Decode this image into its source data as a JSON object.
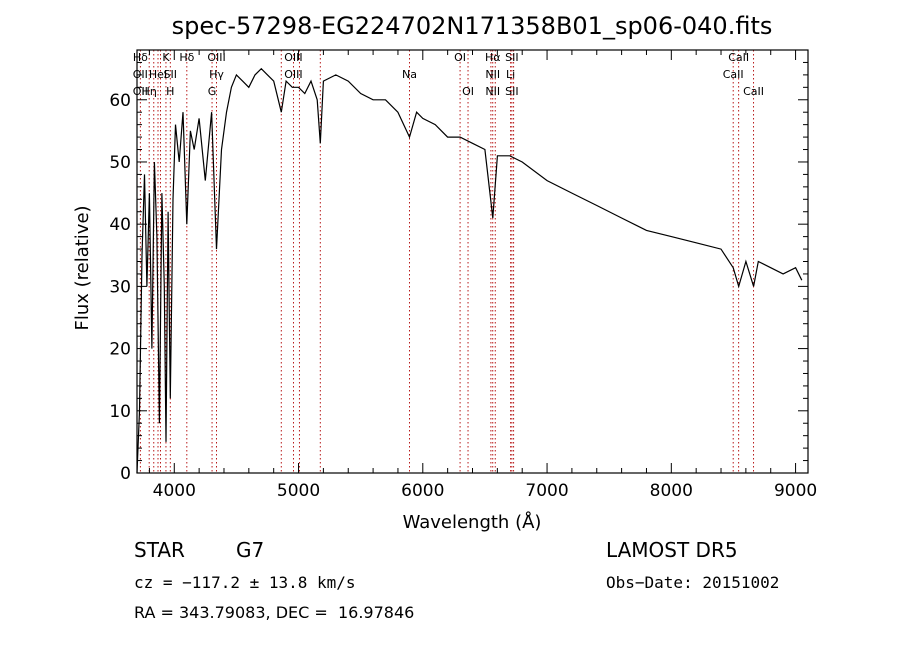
{
  "chart_data": {
    "type": "line",
    "title": "spec-57298-EG224702N171358B01_sp06-040.fits",
    "xlabel": "Wavelength (Å)",
    "ylabel": "Flux (relative)",
    "xlim": [
      3700,
      9100
    ],
    "ylim": [
      0,
      68
    ],
    "x_ticks": [
      4000,
      5000,
      6000,
      7000,
      8000,
      9000
    ],
    "y_ticks": [
      0,
      10,
      20,
      30,
      40,
      50,
      60
    ],
    "grid": false,
    "series": [
      {
        "x": [
          3700,
          3720,
          3740,
          3760,
          3780,
          3800,
          3820,
          3840,
          3860,
          3880,
          3900,
          3920,
          3933,
          3950,
          3968,
          3990,
          4010,
          4040,
          4070,
          4101,
          4130,
          4160,
          4200,
          4250,
          4300,
          4340,
          4380,
          4420,
          4460,
          4500,
          4550,
          4600,
          4650,
          4700,
          4750,
          4800,
          4861,
          4900,
          4950,
          5000,
          5050,
          5100,
          5150,
          5175,
          5200,
          5300,
          5400,
          5500,
          5600,
          5700,
          5800,
          5893,
          5950,
          6000,
          6100,
          6200,
          6300,
          6400,
          6500,
          6563,
          6600,
          6700,
          6800,
          7000,
          7200,
          7400,
          7600,
          7800,
          8000,
          8200,
          8400,
          8498,
          8542,
          8600,
          8662,
          8700,
          8800,
          8900,
          9000,
          9050
        ],
        "y": [
          0,
          10,
          35,
          48,
          30,
          45,
          20,
          50,
          38,
          8,
          45,
          30,
          5,
          42,
          12,
          44,
          56,
          50,
          58,
          40,
          55,
          52,
          57,
          47,
          58,
          36,
          52,
          58,
          62,
          64,
          63,
          62,
          64,
          65,
          64,
          63,
          58,
          63,
          62,
          62,
          61,
          63,
          60,
          53,
          63,
          64,
          63,
          61,
          60,
          60,
          58,
          54,
          58,
          57,
          56,
          54,
          54,
          53,
          52,
          41,
          51,
          51,
          50,
          47,
          45,
          43,
          41,
          39,
          38,
          37,
          36,
          33,
          30,
          34,
          30,
          34,
          33,
          32,
          33,
          31
        ]
      }
    ],
    "lines": [
      {
        "w": 3727,
        "top": "Hδ",
        "mid": "OII",
        "bot": "OII"
      },
      {
        "w": 3798,
        "top": "",
        "mid": "",
        "bot": "Hη"
      },
      {
        "w": 3835,
        "top": "",
        "mid": "",
        "bot": ""
      },
      {
        "w": 3869,
        "top": "",
        "mid": "HeI",
        "bot": ""
      },
      {
        "w": 3889,
        "top": "",
        "mid": "",
        "bot": ""
      },
      {
        "w": 3933,
        "top": "K",
        "mid": "",
        "bot": ""
      },
      {
        "w": 3968,
        "top": "",
        "mid": "SII",
        "bot": "H"
      },
      {
        "w": 4101,
        "top": "Hδ",
        "mid": "",
        "bot": ""
      },
      {
        "w": 4304,
        "top": "",
        "mid": "",
        "bot": "G"
      },
      {
        "w": 4340,
        "top": "OIII",
        "mid": "Hγ",
        "bot": ""
      },
      {
        "w": 4861,
        "top": "",
        "mid": "",
        "bot": ""
      },
      {
        "w": 4959,
        "top": "OIII",
        "mid": "OIII",
        "bot": ""
      },
      {
        "w": 5007,
        "top": "",
        "mid": "",
        "bot": ""
      },
      {
        "w": 5175,
        "top": "",
        "mid": "",
        "bot": ""
      },
      {
        "w": 5893,
        "top": "",
        "mid": "Na",
        "bot": ""
      },
      {
        "w": 6300,
        "top": "OI",
        "mid": "",
        "bot": ""
      },
      {
        "w": 6364,
        "top": "",
        "mid": "",
        "bot": "OI"
      },
      {
        "w": 6548,
        "top": "",
        "mid": "",
        "bot": ""
      },
      {
        "w": 6563,
        "top": "Hα",
        "mid": "NII",
        "bot": "NII"
      },
      {
        "w": 6583,
        "top": "",
        "mid": "",
        "bot": ""
      },
      {
        "w": 6707,
        "top": "",
        "mid": "Li",
        "bot": ""
      },
      {
        "w": 6717,
        "top": "SII",
        "mid": "",
        "bot": "SII"
      },
      {
        "w": 6731,
        "top": "",
        "mid": "",
        "bot": ""
      },
      {
        "w": 8498,
        "top": "",
        "mid": "CaII",
        "bot": ""
      },
      {
        "w": 8542,
        "top": "CaII",
        "mid": "",
        "bot": ""
      },
      {
        "w": 8662,
        "top": "",
        "mid": "",
        "bot": "CaII"
      }
    ]
  },
  "info": {
    "object_class": "STAR",
    "subclass": "G7",
    "survey": "LAMOST DR5",
    "redshift": "cz = −117.2 ± 13.8 km/s",
    "obs_date": "Obs−Date: 20151002",
    "coords": "RA = 343.79083, DEC =  16.97846"
  },
  "colors": {
    "spectrum": "#000000",
    "line_markers": "#b00000",
    "background": "#ffffff"
  }
}
